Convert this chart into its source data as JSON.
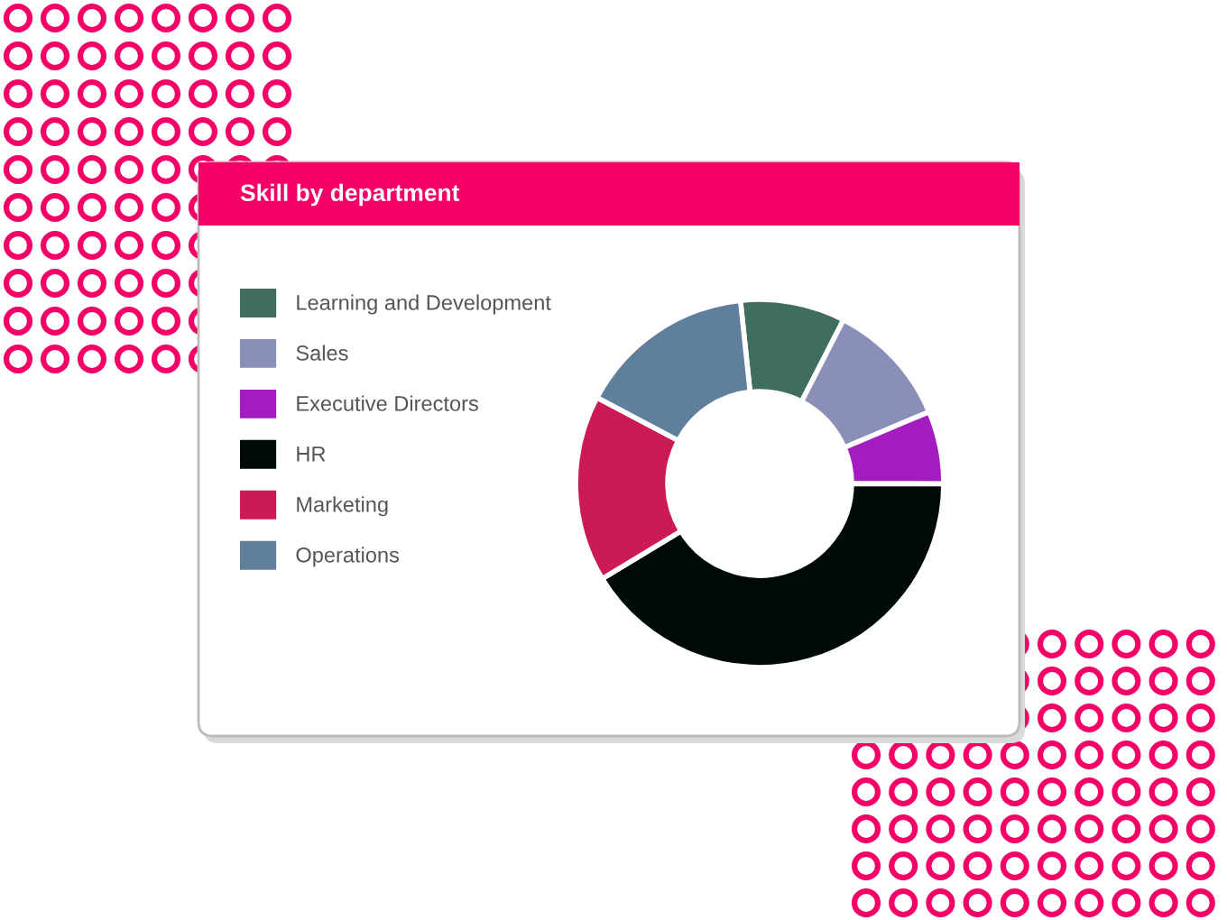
{
  "chart_data": {
    "type": "donut",
    "title": "Skill by department",
    "categories": [
      "Learning and Development",
      "Sales",
      "Executive Directors",
      "HR",
      "Marketing",
      "Operations"
    ],
    "values": [
      9.2,
      11.1,
      6.4,
      41.3,
      16.4,
      15.6
    ],
    "colors": [
      "#3f6e5e",
      "#8a8fb8",
      "#a31cbf",
      "#000a05",
      "#cc1a55",
      "#5f7f9c"
    ],
    "legend": "left"
  }
}
